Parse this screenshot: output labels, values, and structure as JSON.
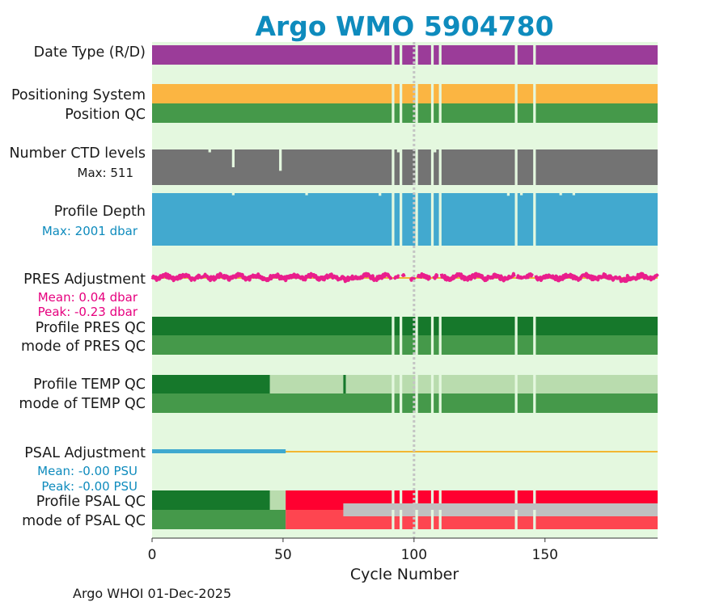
{
  "colors": {
    "panel_bg": "#e4f8df",
    "date_type": "#9b3c99",
    "positioning": "#fbb542",
    "qc_good": "#45994a",
    "qc_good_dark": "#16782b",
    "qc_light": "#b9dcae",
    "qc_bad": "#ff0030",
    "qc_bad_light": "#fe4550",
    "qc_gray": "#c0c0c0",
    "ctd": "#737373",
    "depth": "#42a9cf",
    "pres_line": "#e91e8c",
    "zero_line": "#f2b632",
    "psal_line": "#3fa9cf",
    "title": "#0e8bbd",
    "pink_text": "#e6007e",
    "blue_text": "#0e8bbd",
    "ref_line": "#c4c4c4"
  },
  "chart_data": {
    "type": "bar",
    "title": "Argo WMO 5904780",
    "xlabel": "Cycle Number",
    "xlim": [
      0,
      193
    ],
    "xticks": [
      0,
      50,
      100,
      150
    ],
    "reference_line_x": 100,
    "missing_cycles": [
      92,
      95,
      101,
      107,
      110,
      139,
      146
    ],
    "rows": [
      {
        "id": "date_type",
        "label": "Date Type (R/D)"
      },
      {
        "id": "positioning_system",
        "label": "Positioning System"
      },
      {
        "id": "position_qc",
        "label": "Position QC"
      },
      {
        "id": "ctd_levels",
        "label": "Number CTD levels",
        "annotation": "Max: 511",
        "max": 511
      },
      {
        "id": "profile_depth",
        "label": "Profile Depth",
        "annotation": "Max: 2001 dbar",
        "max": 2001
      },
      {
        "id": "pres_adjustment",
        "label": "PRES Adjustment",
        "annotations": [
          "Mean: 0.04 dbar",
          "Peak: -0.23 dbar"
        ],
        "mean": 0.04,
        "peak": -0.23
      },
      {
        "id": "profile_pres_qc",
        "label": "Profile PRES QC"
      },
      {
        "id": "mode_pres_qc",
        "label": "mode of PRES QC"
      },
      {
        "id": "profile_temp_qc",
        "label": "Profile TEMP QC",
        "segments": [
          {
            "from": 0,
            "to": 45,
            "level": "A"
          },
          {
            "from": 45,
            "to": 73,
            "level": "B"
          },
          {
            "from": 73,
            "to": 74,
            "level": "A"
          },
          {
            "from": 74,
            "to": 193,
            "level": "B"
          }
        ]
      },
      {
        "id": "mode_temp_qc",
        "label": "mode of TEMP QC"
      },
      {
        "id": "psal_adjustment",
        "label": "PSAL Adjustment",
        "annotations": [
          "Mean: -0.00 PSU",
          "Peak: -0.00 PSU"
        ],
        "mean": -0.0,
        "peak": -0.0,
        "adjusted_until": 51
      },
      {
        "id": "profile_psal_qc",
        "label": "Profile PSAL QC",
        "segments": [
          {
            "from": 0,
            "to": 45,
            "level": "A"
          },
          {
            "from": 45,
            "to": 51,
            "level": "B"
          },
          {
            "from": 51,
            "to": 193,
            "level": "F"
          }
        ]
      },
      {
        "id": "mode_psal_qc",
        "label": "mode of PSAL QC",
        "segments": [
          {
            "from": 0,
            "to": 51,
            "qc": "good"
          },
          {
            "from": 51,
            "to": 193,
            "qc": "bad"
          }
        ]
      }
    ],
    "ctd_dips": [
      [
        22,
        0.92
      ],
      [
        31,
        0.5
      ],
      [
        49,
        0.4
      ],
      [
        94,
        0.92
      ],
      [
        108,
        0.92
      ]
    ],
    "depth_dips": [
      [
        31,
        0.96
      ],
      [
        59,
        0.96
      ],
      [
        87,
        0.95
      ],
      [
        136,
        0.95
      ],
      [
        141,
        0.96
      ],
      [
        156,
        0.96
      ],
      [
        161,
        0.96
      ]
    ]
  },
  "footer": "Argo WHOI 01-Dec-2025"
}
